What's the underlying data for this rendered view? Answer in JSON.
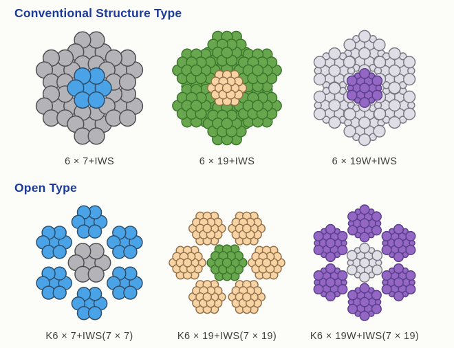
{
  "colors": {
    "heading": "#1b3a9b",
    "label": "#3c3c3c",
    "background": "#fcfcf8",
    "gray_wire": "#b4b3b7",
    "blue_wire": "#4aa3e6",
    "green_wire": "#68a74e",
    "tan_wire": "#f8d3a4",
    "purple_wire": "#9367c3",
    "lavender_wire": "#dfdee6"
  },
  "sections": [
    {
      "heading": "Conventional Structure Type",
      "ropes": [
        {
          "label": "6 × 7+IWS",
          "layout": "conventional",
          "start_angle": 90,
          "core": {
            "strand": "7",
            "unit": 1.0,
            "fill": "#4aa3e6",
            "stroke": "#2e4e6b"
          },
          "outer": {
            "strand": "7",
            "unit": 1.0,
            "fill": "#b4b3b7",
            "stroke": "#4e4d51"
          }
        },
        {
          "label": "6 × 19+IWS",
          "layout": "conventional",
          "start_angle": 90,
          "core": {
            "strand": "19",
            "unit": 0.82,
            "fill": "#f8d3a4",
            "stroke": "#93714b"
          },
          "outer": {
            "strand": "19",
            "unit": 1.0,
            "fill": "#68a74e",
            "stroke": "#39752a"
          }
        },
        {
          "label": "6 × 19W+IWS",
          "layout": "conventional",
          "start_angle": 90,
          "core": {
            "strand": "19W",
            "unit": 0.85,
            "fill": "#9367c3",
            "stroke": "#5a3f8c"
          },
          "outer": {
            "strand": "19W",
            "unit": 1.0,
            "fill": "#dfdee6",
            "stroke": "#7a7983"
          }
        }
      ]
    },
    {
      "heading": "Open Type",
      "ropes": [
        {
          "label": "K6 × 7+IWS(7 × 7)",
          "layout": "open",
          "start_angle": 90,
          "core": {
            "strand": "7",
            "unit": 1.2,
            "fill": "#b4b3b7",
            "stroke": "#4e4d51"
          },
          "outer": {
            "strand": "7",
            "unit": 1.0,
            "fill": "#4aa3e6",
            "stroke": "#2e4e6b"
          }
        },
        {
          "label": "K6 × 19+IWS(7 × 19)",
          "layout": "open",
          "start_angle": 0,
          "core": {
            "strand": "19",
            "unit": 1.0,
            "fill": "#68a74e",
            "stroke": "#39752a"
          },
          "outer": {
            "strand": "19",
            "unit": 0.92,
            "fill": "#f8d3a4",
            "stroke": "#93714b"
          }
        },
        {
          "label": "K6 × 19W+IWS(7 × 19)",
          "layout": "open",
          "start_angle": 90,
          "core": {
            "strand": "19W",
            "unit": 1.05,
            "fill": "#e0dfe6",
            "stroke": "#7a7983"
          },
          "outer": {
            "strand": "19W",
            "unit": 1.0,
            "fill": "#9367c3",
            "stroke": "#5a3f8c"
          }
        }
      ]
    }
  ]
}
